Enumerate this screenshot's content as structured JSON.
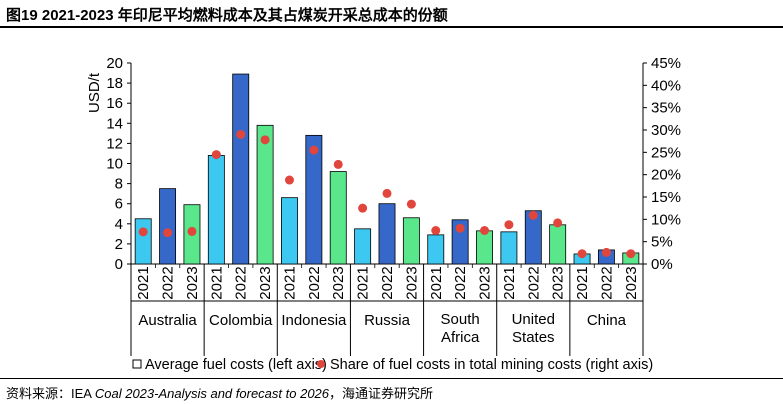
{
  "header": {
    "title": "图19 2021-2023 年印尼平均燃料成本及其占煤炭开采总成本的份额"
  },
  "source": {
    "prefix": "资料来源：IEA ",
    "italic": "Coal 2023-Analysis and forecast to 2026",
    "suffix": "，海通证券研究所"
  },
  "colors": {
    "year_2021": "#3cc8f0",
    "year_2022": "#3568c8",
    "year_2023": "#5ae68a",
    "dots": "#e0463c"
  },
  "chart_data": {
    "type": "bar",
    "ylabel": "USD/t",
    "ylim": [
      0,
      20
    ],
    "yticks": [
      "0",
      "2",
      "4",
      "6",
      "8",
      "10",
      "12",
      "14",
      "16",
      "18",
      "20"
    ],
    "y2lim": [
      0,
      45
    ],
    "y2ticks": [
      "0%",
      "5%",
      "10%",
      "15%",
      "20%",
      "25%",
      "30%",
      "35%",
      "40%",
      "45%"
    ],
    "years": [
      "2021",
      "2022",
      "2023"
    ],
    "groups": [
      {
        "name": "Australia",
        "name_lines": [
          "Australia"
        ],
        "costs": [
          4.5,
          7.5,
          5.9
        ],
        "shares": [
          7.2,
          7.0,
          7.3
        ]
      },
      {
        "name": "Colombia",
        "name_lines": [
          "Colombia"
        ],
        "costs": [
          10.8,
          18.9,
          13.8
        ],
        "shares": [
          24.5,
          29.0,
          27.8
        ]
      },
      {
        "name": "Indonesia",
        "name_lines": [
          "Indonesia"
        ],
        "costs": [
          6.6,
          12.8,
          9.2
        ],
        "shares": [
          18.8,
          25.5,
          22.3
        ]
      },
      {
        "name": "Russia",
        "name_lines": [
          "Russia"
        ],
        "costs": [
          3.5,
          6.0,
          4.6
        ],
        "shares": [
          12.5,
          15.8,
          13.4
        ]
      },
      {
        "name": "South Africa",
        "name_lines": [
          "South",
          "Africa"
        ],
        "costs": [
          2.9,
          4.4,
          3.3
        ],
        "shares": [
          7.5,
          8.0,
          7.5
        ]
      },
      {
        "name": "United States",
        "name_lines": [
          "United",
          "States"
        ],
        "costs": [
          3.2,
          5.3,
          3.9
        ],
        "shares": [
          8.8,
          10.9,
          9.2
        ]
      },
      {
        "name": "China",
        "name_lines": [
          "China"
        ],
        "costs": [
          1.0,
          1.4,
          1.1
        ],
        "shares": [
          2.3,
          2.6,
          2.3
        ]
      }
    ],
    "legend": {
      "bars": "Average fuel costs (left axis)",
      "dots": "Share of fuel costs in total mining costs (right axis)"
    },
    "legend_position": "bottom",
    "grid": false
  }
}
